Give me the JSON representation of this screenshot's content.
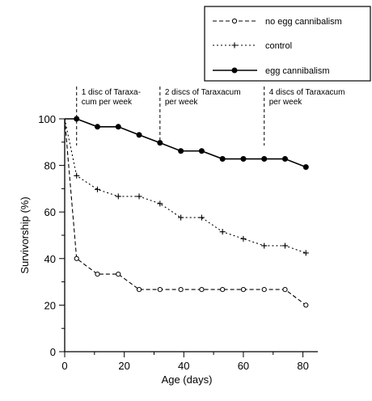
{
  "chart_data": {
    "type": "line",
    "xlabel": "Age (days)",
    "ylabel": "Survivorship (%)",
    "xlim": [
      0,
      85
    ],
    "ylim": [
      0,
      100
    ],
    "x_ticks": [
      0,
      20,
      40,
      60,
      80
    ],
    "y_ticks": [
      0,
      20,
      40,
      60,
      80,
      100
    ],
    "legend_position": "top-right",
    "series": [
      {
        "name": "no egg cannibalism",
        "style": "dashed",
        "marker": "open-circle",
        "x": [
          0,
          4,
          11,
          18,
          25,
          32,
          39,
          46,
          53,
          60,
          67,
          74,
          81
        ],
        "y": [
          100,
          40,
          33.3,
          33.3,
          26.7,
          26.7,
          26.7,
          26.7,
          26.7,
          26.7,
          26.7,
          26.7,
          20
        ]
      },
      {
        "name": "control",
        "style": "dotted",
        "marker": "plus",
        "x": [
          0,
          4,
          11,
          18,
          25,
          32,
          39,
          46,
          53,
          60,
          67,
          74,
          81
        ],
        "y": [
          100,
          75.6,
          69.7,
          66.7,
          66.7,
          63.6,
          57.6,
          57.6,
          51.5,
          48.5,
          45.5,
          45.5,
          42.4
        ]
      },
      {
        "name": "egg cannibalism",
        "style": "solid",
        "marker": "filled-circle",
        "x": [
          0,
          4,
          11,
          18,
          25,
          32,
          39,
          46,
          53,
          60,
          67,
          74,
          81
        ],
        "y": [
          100,
          100,
          96.6,
          96.6,
          93.1,
          89.7,
          86.2,
          86.2,
          82.8,
          82.8,
          82.8,
          82.8,
          79.3
        ]
      }
    ],
    "annotations": [
      {
        "x": 4,
        "lines": [
          "1 disc of Taraxa-",
          "cum per week"
        ]
      },
      {
        "x": 32,
        "lines": [
          "2 discs of Taraxacum",
          "per week"
        ]
      },
      {
        "x": 67,
        "lines": [
          "4 discs of Taraxacum",
          "per week"
        ]
      }
    ]
  }
}
